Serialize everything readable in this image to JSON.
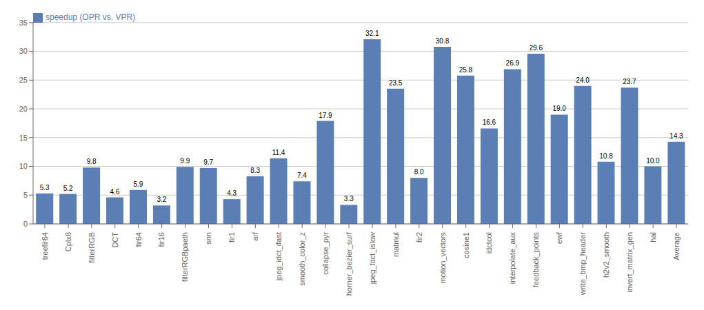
{
  "chart_data": {
    "type": "bar",
    "categories": [
      "treefir64",
      "Cplx8",
      "filterRGB",
      "DCT",
      "fir64",
      "fir16",
      "filterRGBpaeth",
      "snn",
      "fir1",
      "arf",
      "jpeg_idct_ifast",
      "smooth_color_z",
      "collapse_pyr",
      "horner_bezier_surf",
      "jpeg_fdct_islow",
      "matmul",
      "fir2",
      "motion_vectors",
      "cosine1",
      "idctcol",
      "interpolate_aux",
      "feedback_points",
      "ewf",
      "write_bmp_header",
      "h2v2_smooth",
      "invert_matrix_gen",
      "hal",
      "Average"
    ],
    "series": [
      {
        "name": "speedup (OPR vs. VPR)",
        "color": "#5b7fb5",
        "values": [
          5.3,
          5.2,
          9.8,
          4.6,
          5.9,
          3.2,
          9.9,
          9.7,
          4.3,
          8.3,
          11.4,
          7.4,
          17.9,
          3.3,
          32.1,
          23.5,
          8.0,
          30.8,
          25.8,
          16.6,
          26.9,
          29.6,
          19.0,
          24.0,
          10.8,
          23.7,
          10.0,
          14.3
        ],
        "value_labels": [
          "5.3",
          "5.2",
          "9.8",
          "4.6",
          "5.9",
          "3.2",
          "9.9",
          "9.7",
          "4.3",
          "8.3",
          "11.4",
          "7.4",
          "17.9",
          "3.3",
          "32.1",
          "23.5",
          "8.0",
          "30.8",
          "25.8",
          "16.6",
          "26.9",
          "29.6",
          "19.0",
          "24.0",
          "10.8",
          "23.7",
          "10.0",
          "14.3"
        ]
      }
    ],
    "ylim": [
      0,
      35
    ],
    "yticks": [
      0,
      5,
      10,
      15,
      20,
      25,
      30,
      35
    ],
    "grid": true,
    "legend": "upper left",
    "data_labels": true
  }
}
